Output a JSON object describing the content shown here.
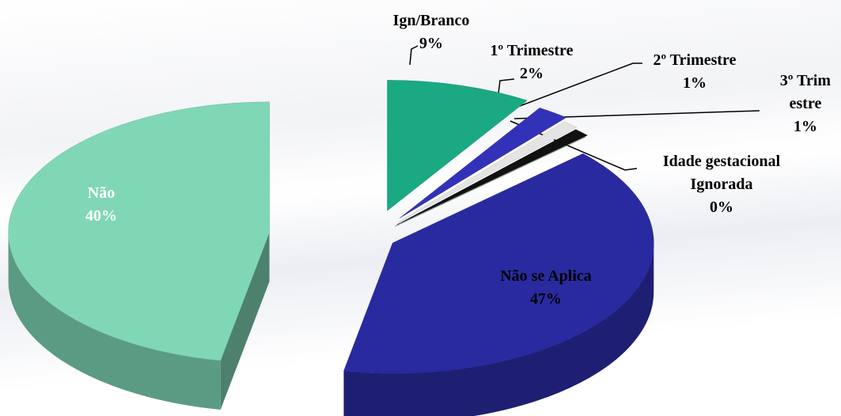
{
  "chart_data": {
    "type": "pie",
    "categories": [
      "Ign/Branco",
      "1º Trimestre",
      "2º Trimestre",
      "3º Trimestre",
      "Idade gestacional Ignorada",
      "Não",
      "Não se Aplica"
    ],
    "values": [
      9,
      2,
      1,
      1,
      0,
      40,
      47
    ],
    "value_labels": [
      "9%",
      "2%",
      "1%",
      "1%",
      "0%",
      "40%",
      "47%"
    ],
    "colors": [
      "#1aa982",
      "#3232b8",
      "#e4e4e4",
      "#111111",
      "#5e7f6c",
      "#2a2aa0",
      "#80d7b6"
    ]
  }
}
